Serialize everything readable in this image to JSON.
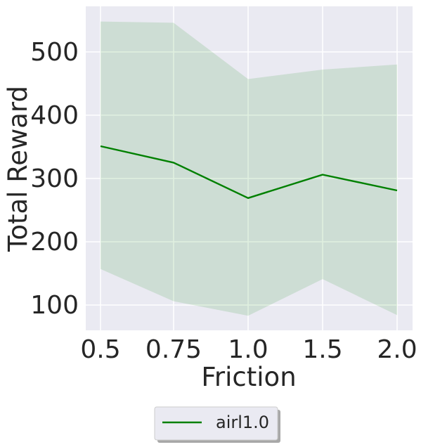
{
  "chart_data": {
    "type": "line",
    "x": [
      "0.5",
      "0.75",
      "1.0",
      "1.5",
      "2.0"
    ],
    "series": [
      {
        "name": "airl1.0",
        "values": [
          351,
          325,
          269,
          306,
          281
        ],
        "upper": [
          548,
          546,
          457,
          472,
          480
        ],
        "lower": [
          157,
          106,
          83,
          141,
          84
        ],
        "color": "#008000"
      }
    ],
    "xlabel": "Friction",
    "ylabel": "Total Reward",
    "yticks": [
      100,
      200,
      300,
      400,
      500
    ],
    "ylim": [
      60,
      572
    ],
    "grid": true,
    "legend": "bottom-center",
    "background": "#eaeaf2",
    "band_color": "#008000"
  }
}
